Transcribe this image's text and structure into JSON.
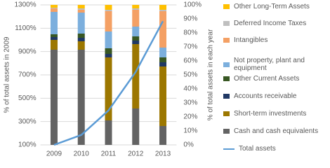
{
  "chart_data": {
    "type": "bar",
    "stacked": true,
    "y_label": "% of total assets in 2009",
    "y2_label": "% of total assets in each year",
    "categories": [
      "2009",
      "2010",
      "2011",
      "2012",
      "2013"
    ],
    "ylim": [
      100,
      1300
    ],
    "yticks": [
      {
        "value": 100,
        "label": "100%"
      },
      {
        "value": 300,
        "label": "300%"
      },
      {
        "value": 500,
        "label": "500%"
      },
      {
        "value": 700,
        "label": "700%"
      },
      {
        "value": 900,
        "label": "900%"
      },
      {
        "value": 1100,
        "label": "1100%"
      },
      {
        "value": 1300,
        "label": "1300%"
      }
    ],
    "y2lim": [
      0,
      100
    ],
    "y2ticks": [
      {
        "value": 0,
        "label": "0%"
      },
      {
        "value": 10,
        "label": "10%"
      },
      {
        "value": 20,
        "label": "20%"
      },
      {
        "value": 30,
        "label": "30%"
      },
      {
        "value": 40,
        "label": "40%"
      },
      {
        "value": 50,
        "label": "50%"
      },
      {
        "value": 60,
        "label": "60%"
      },
      {
        "value": 70,
        "label": "70%"
      },
      {
        "value": 80,
        "label": "80%"
      },
      {
        "value": 90,
        "label": "90%"
      },
      {
        "value": 100,
        "label": "100%"
      }
    ],
    "grid": true,
    "series": [
      {
        "name": "Cash and cash equivalents",
        "color": "#636363",
        "axis": "y2",
        "values": [
          68,
          68,
          17.5,
          26,
          13.5
        ]
      },
      {
        "name": "Short-term investments",
        "color": "#9c7700",
        "axis": "y2",
        "values": [
          7,
          6,
          45,
          46,
          42.5
        ]
      },
      {
        "name": "Accounts receivable",
        "color": "#203864",
        "axis": "y2",
        "values": [
          2,
          2.5,
          2.5,
          2.5,
          3
        ]
      },
      {
        "name": "Other Current Assets",
        "color": "#385723",
        "axis": "y2",
        "values": [
          2,
          3,
          4,
          3,
          3.5
        ]
      },
      {
        "name": "Not property, plant and equipment",
        "color": "#7cafdd",
        "axis": "y2",
        "values": [
          16,
          15,
          12,
          7,
          7
        ]
      },
      {
        "name": "Intangibles",
        "color": "#f4a064",
        "axis": "y2",
        "values": [
          2.5,
          2,
          14.5,
          12,
          26
        ]
      },
      {
        "name": "Deferred Income Taxes",
        "color": "#bfbfbf",
        "axis": "y2",
        "values": [
          0.5,
          1,
          1,
          1,
          1
        ]
      },
      {
        "name": "Other Long-Term Assets",
        "color": "#ffc000",
        "axis": "y2",
        "values": [
          2,
          2.5,
          3.5,
          2.5,
          3.5
        ]
      },
      {
        "name": "Total assets",
        "color": "#5b9bd5",
        "type": "line",
        "axis": "y",
        "values": [
          100,
          185,
          395,
          725,
          1160
        ]
      }
    ]
  }
}
